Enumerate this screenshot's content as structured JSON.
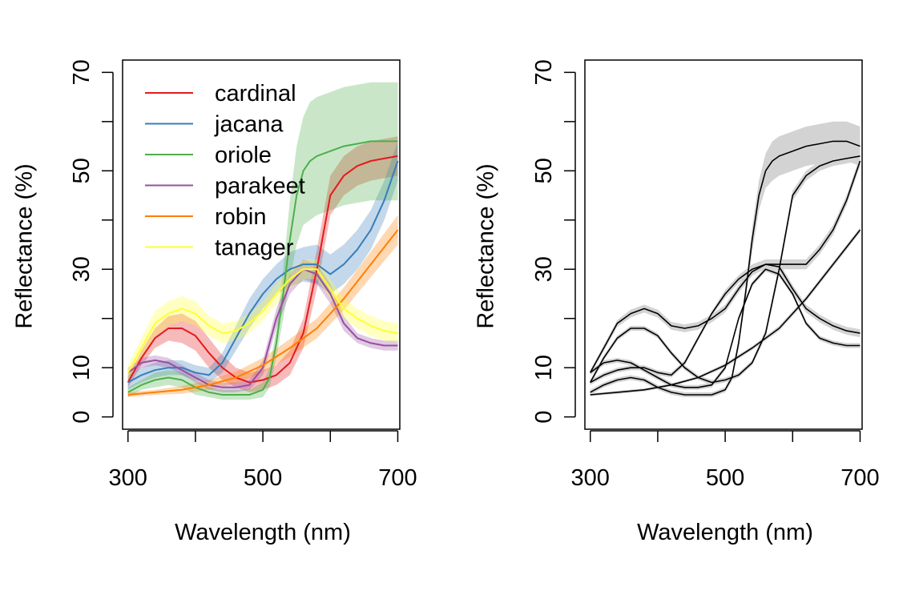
{
  "chart_data": [
    {
      "type": "line",
      "panel": "left",
      "xlabel": "Wavelength (nm)",
      "ylabel": "Reflectance (%)",
      "xlim": [
        292,
        703
      ],
      "ylim": [
        -2.5,
        72.5
      ],
      "x_ticks": [
        300,
        400,
        500,
        600,
        700
      ],
      "x_tick_labels": [
        "300",
        "500",
        "700"
      ],
      "x_tick_label_values": [
        300,
        500,
        700
      ],
      "y_ticks": [
        0,
        10,
        20,
        30,
        40,
        50,
        60,
        70
      ],
      "y_tick_labels": [
        "0",
        "10",
        "30",
        "50",
        "70"
      ],
      "y_tick_label_values": [
        0,
        10,
        30,
        50,
        70
      ],
      "grid": false,
      "legend": {
        "placement": "top-left",
        "entries": [
          "cardinal",
          "jacana",
          "oriole",
          "parakeet",
          "robin",
          "tanager"
        ]
      },
      "band": "shaded range (mean ± sd) per series",
      "series": [
        {
          "name": "cardinal",
          "color": "#e41a1c",
          "x": [
            300,
            320,
            340,
            360,
            380,
            400,
            420,
            440,
            460,
            480,
            500,
            520,
            540,
            560,
            580,
            600,
            620,
            640,
            660,
            680,
            700
          ],
          "y": [
            7,
            12,
            16,
            18,
            18,
            16.5,
            13,
            10,
            8,
            7,
            7.5,
            8.5,
            11,
            17,
            30,
            45,
            49,
            51,
            52,
            52.5,
            53
          ],
          "band_halfwidth": [
            1,
            1.5,
            2,
            2.5,
            3,
            3,
            3,
            2.5,
            2,
            2,
            2,
            2,
            2.5,
            3,
            4,
            4,
            4,
            4,
            4,
            4,
            4
          ]
        },
        {
          "name": "jacana",
          "color": "#377eb8",
          "x": [
            300,
            320,
            340,
            360,
            380,
            400,
            420,
            440,
            460,
            480,
            500,
            520,
            540,
            560,
            580,
            600,
            620,
            640,
            660,
            680,
            700
          ],
          "y": [
            7,
            8.5,
            9.5,
            10,
            10,
            9,
            8.5,
            11,
            16,
            21,
            25,
            28,
            30,
            31,
            31,
            29,
            31,
            34,
            38,
            44,
            52
          ],
          "band_halfwidth": [
            1.5,
            1.5,
            1.5,
            1.5,
            1.5,
            1.5,
            1.5,
            2,
            2.5,
            3,
            3,
            3,
            3.5,
            3.5,
            4,
            4,
            4,
            4,
            4,
            4,
            4
          ]
        },
        {
          "name": "oriole",
          "color": "#4daf4a",
          "x": [
            300,
            320,
            340,
            360,
            380,
            400,
            420,
            440,
            460,
            480,
            500,
            510,
            520,
            530,
            540,
            550,
            560,
            570,
            580,
            600,
            620,
            640,
            660,
            680,
            700
          ],
          "y": [
            5,
            6.5,
            7.5,
            8,
            7.5,
            6,
            5,
            4.5,
            4.5,
            4.5,
            5.5,
            8,
            15,
            25,
            36,
            45,
            50,
            52,
            53,
            54,
            55,
            55.5,
            56,
            56,
            56
          ],
          "band_halfwidth": [
            1,
            1,
            1.5,
            1.5,
            1.5,
            1.5,
            1,
            1,
            1,
            1,
            1.5,
            2,
            3,
            5,
            8,
            10,
            11,
            12,
            12,
            12,
            12,
            12,
            12,
            12,
            12
          ]
        },
        {
          "name": "parakeet",
          "color": "#984ea3",
          "x": [
            300,
            320,
            340,
            360,
            380,
            400,
            420,
            440,
            460,
            480,
            500,
            520,
            540,
            560,
            580,
            600,
            620,
            640,
            660,
            680,
            700
          ],
          "y": [
            9,
            11,
            11.5,
            11,
            9.5,
            8,
            6.5,
            6,
            6,
            6.5,
            10,
            20,
            27,
            30,
            29,
            25,
            19,
            16,
            15,
            14.5,
            14.5
          ],
          "band_halfwidth": [
            1,
            1,
            1,
            1,
            1,
            1,
            1,
            1,
            1,
            1,
            1.5,
            2,
            2,
            2,
            2,
            2,
            1.5,
            1,
            1,
            1,
            1
          ]
        },
        {
          "name": "robin",
          "color": "#ff7f00",
          "x": [
            300,
            340,
            380,
            420,
            460,
            500,
            540,
            580,
            620,
            660,
            700
          ],
          "y": [
            4.5,
            5,
            5.5,
            6.5,
            8,
            10.5,
            14,
            18,
            24,
            31,
            38
          ],
          "band_halfwidth": [
            0.5,
            0.5,
            0.8,
            1,
            1.2,
            1.5,
            1.8,
            2,
            2.3,
            2.6,
            3
          ]
        },
        {
          "name": "tanager",
          "color": "#ffff33",
          "x": [
            300,
            320,
            340,
            360,
            380,
            400,
            420,
            440,
            460,
            480,
            500,
            520,
            540,
            560,
            580,
            600,
            620,
            640,
            660,
            680,
            700
          ],
          "y": [
            9,
            14,
            19,
            21,
            22,
            21,
            18.5,
            17,
            17.5,
            19,
            21.5,
            25,
            28,
            30,
            30,
            26,
            22,
            20,
            18.5,
            17.5,
            17
          ],
          "band_halfwidth": [
            1.5,
            2,
            2.5,
            2.5,
            2.5,
            2.5,
            2,
            2,
            2,
            2,
            2,
            2,
            2,
            2,
            2,
            2,
            2,
            2,
            2,
            2,
            2
          ]
        }
      ]
    },
    {
      "type": "line",
      "panel": "right",
      "xlabel": "Wavelength (nm)",
      "ylabel": "Reflectance (%)",
      "xlim": [
        292,
        703
      ],
      "ylim": [
        -2.5,
        72.5
      ],
      "x_ticks": [
        300,
        400,
        500,
        600,
        700
      ],
      "x_tick_labels": [
        "300",
        "500",
        "700"
      ],
      "x_tick_label_values": [
        300,
        500,
        700
      ],
      "y_ticks": [
        0,
        10,
        20,
        30,
        40,
        50,
        60,
        70
      ],
      "y_tick_labels": [
        "0",
        "10",
        "30",
        "50",
        "70"
      ],
      "y_tick_label_values": [
        0,
        10,
        30,
        50,
        70
      ],
      "grid": false,
      "line_color": "#000000",
      "band_color": "#d3d3d3",
      "band": "grey shaded range around each curve",
      "series": [
        {
          "x": [
            300,
            320,
            340,
            360,
            380,
            400,
            420,
            440,
            460,
            480,
            500,
            520,
            540,
            560,
            580,
            600,
            620,
            640,
            660,
            680,
            700
          ],
          "y": [
            7,
            12,
            16,
            18,
            18,
            16.5,
            13,
            10,
            8,
            7,
            7.5,
            8.5,
            11,
            17,
            30,
            45,
            49,
            51,
            52,
            52.5,
            53
          ],
          "band_halfwidth": [
            0.5,
            0.5,
            0.5,
            0.5,
            0.5,
            0.5,
            0.5,
            0.5,
            0.5,
            0.5,
            0.5,
            0.5,
            0.5,
            0.8,
            1,
            1,
            1,
            1,
            1,
            1,
            1
          ]
        },
        {
          "x": [
            300,
            320,
            340,
            360,
            380,
            400,
            420,
            440,
            460,
            480,
            500,
            520,
            540,
            560,
            580,
            600,
            620,
            640,
            660,
            680,
            700
          ],
          "y": [
            7,
            8.5,
            9.5,
            10,
            10,
            9,
            8.5,
            11,
            16,
            21,
            25,
            28,
            30,
            31,
            31,
            31,
            31,
            34,
            38,
            44,
            52
          ],
          "band_halfwidth": [
            0.5,
            0.5,
            0.5,
            0.5,
            0.5,
            0.5,
            0.5,
            0.5,
            0.5,
            0.5,
            0.8,
            0.8,
            1,
            1,
            1,
            1,
            1,
            1,
            1,
            1,
            1
          ]
        },
        {
          "x": [
            300,
            320,
            340,
            360,
            380,
            400,
            420,
            440,
            460,
            480,
            500,
            510,
            520,
            530,
            540,
            550,
            560,
            570,
            580,
            600,
            620,
            640,
            660,
            680,
            700
          ],
          "y": [
            5,
            6.5,
            7.5,
            8,
            7.5,
            6,
            5,
            4.5,
            4.5,
            4.5,
            5.5,
            8,
            15,
            25,
            36,
            45,
            50,
            52,
            53,
            54,
            55,
            55.5,
            56,
            56,
            55
          ],
          "band_halfwidth": [
            0.5,
            0.5,
            0.5,
            0.5,
            0.5,
            0.5,
            0.5,
            0.5,
            0.5,
            0.5,
            0.5,
            0.8,
            1,
            1.5,
            2.5,
            3,
            3.5,
            4,
            4,
            4,
            4,
            4,
            4,
            4,
            4
          ]
        },
        {
          "x": [
            300,
            320,
            340,
            360,
            380,
            400,
            420,
            440,
            460,
            480,
            500,
            520,
            540,
            560,
            580,
            600,
            620,
            640,
            660,
            680,
            700
          ],
          "y": [
            9,
            11,
            11.5,
            11,
            9.5,
            8,
            6.5,
            6,
            6,
            6.5,
            10,
            20,
            27,
            30,
            29,
            25,
            19,
            16,
            15,
            14.5,
            14.5
          ],
          "band_halfwidth": [
            0.5,
            0.5,
            0.5,
            0.5,
            0.5,
            0.5,
            0.5,
            0.5,
            0.5,
            0.5,
            0.5,
            0.5,
            0.5,
            0.5,
            0.5,
            0.5,
            0.5,
            0.5,
            0.5,
            0.5,
            0.5
          ]
        },
        {
          "x": [
            300,
            340,
            380,
            420,
            460,
            500,
            540,
            580,
            620,
            660,
            700
          ],
          "y": [
            4.5,
            5,
            5.5,
            6.5,
            8,
            10.5,
            14,
            18,
            24,
            31,
            38
          ],
          "band_halfwidth": [
            0.3,
            0.3,
            0.3,
            0.3,
            0.3,
            0.4,
            0.4,
            0.5,
            0.5,
            0.5,
            0.5
          ]
        },
        {
          "x": [
            300,
            320,
            340,
            360,
            380,
            400,
            420,
            440,
            460,
            480,
            500,
            520,
            540,
            560,
            580,
            600,
            620,
            640,
            660,
            680,
            700
          ],
          "y": [
            9,
            14,
            19,
            21,
            22,
            21,
            18.5,
            18,
            18.5,
            20,
            22,
            26,
            29.5,
            31,
            30.5,
            26,
            22,
            20,
            18.5,
            17.5,
            17
          ],
          "band_halfwidth": [
            0.5,
            0.6,
            0.7,
            0.8,
            0.8,
            0.8,
            0.8,
            0.8,
            0.8,
            0.8,
            0.8,
            0.8,
            0.8,
            0.8,
            0.8,
            0.8,
            0.8,
            0.8,
            0.8,
            0.8,
            0.8
          ]
        }
      ]
    }
  ]
}
